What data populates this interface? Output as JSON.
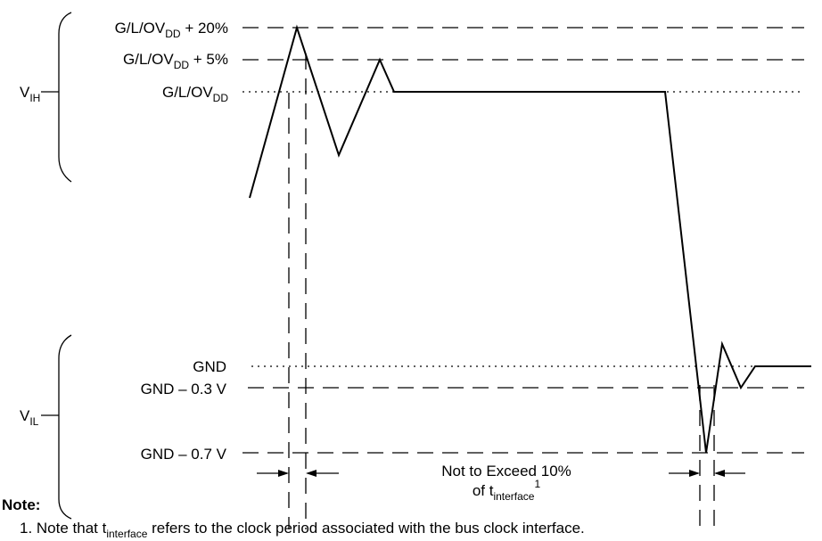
{
  "vih": {
    "base": "V",
    "sub": "IH"
  },
  "vil": {
    "base": "V",
    "sub": "IL"
  },
  "levels": {
    "plus20": {
      "pre": "G/L/OV",
      "sub": "DD",
      "post": " + 20%"
    },
    "plus5": {
      "pre": "G/L/OV",
      "sub": "DD",
      "post": " + 5%"
    },
    "nominal": {
      "pre": "G/L/OV",
      "sub": "DD",
      "post": ""
    },
    "gnd": "GND",
    "gnd_minus_03": "GND – 0.3 V",
    "gnd_minus_07": "GND – 0.7 V"
  },
  "annotation": {
    "line1": "Not to Exceed 10%",
    "line2_pre": "of t",
    "line2_sub": "interface",
    "line2_sup": "1"
  },
  "note": {
    "title": "Note:",
    "text_pre": "1. Note that t",
    "text_sub": "interface",
    "text_post": " refers to the clock period associated with the bus clock interface."
  }
}
